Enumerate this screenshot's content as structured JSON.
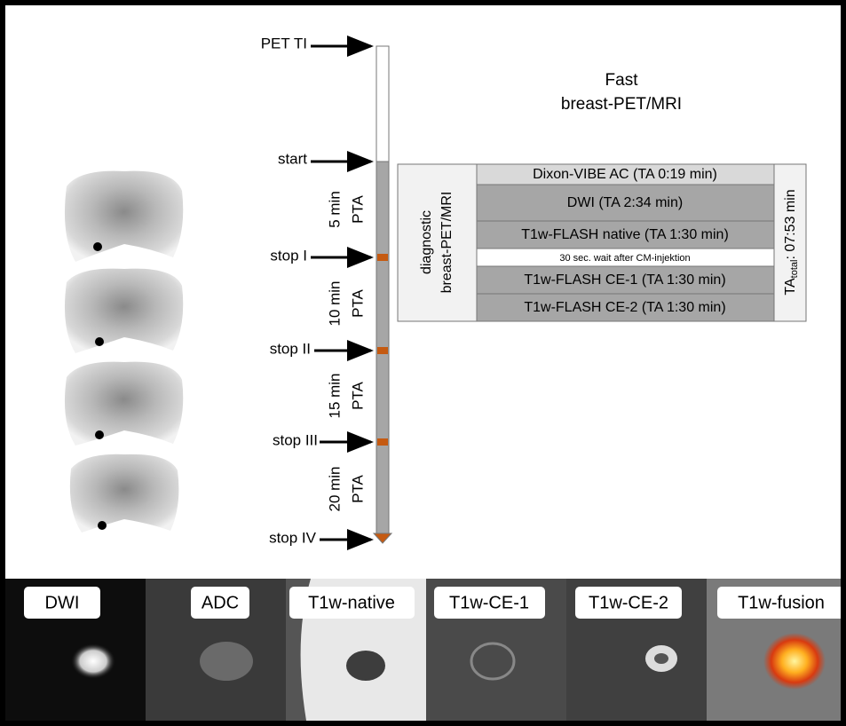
{
  "title": {
    "line1": "Fast",
    "line2": "breast-PET/MRI"
  },
  "timeline": {
    "markers": [
      "PET TI",
      "start",
      "stop I",
      "stop II",
      "stop III",
      "stop IV"
    ],
    "intervals": [
      {
        "duration": "5 min",
        "label": "PTA"
      },
      {
        "duration": "10 min",
        "label": "PTA"
      },
      {
        "duration": "15 min",
        "label": "PTA"
      },
      {
        "duration": "20 min",
        "label": "PTA"
      }
    ]
  },
  "protocol": {
    "group": {
      "line1": "diagnostic",
      "line2": "breast-PET/MRI"
    },
    "rows": [
      "Dixon-VIBE AC (TA 0:19 min)",
      "DWI (TA 2:34 min)",
      "T1w-FLASH native (TA 1:30 min)",
      "30 sec. wait after CM-injektion",
      "T1w-FLASH CE-1 (TA 1:30 min)",
      "T1w-FLASH CE-2 (TA 1:30 min)"
    ],
    "total": {
      "prefix": "TA",
      "subscript": "total",
      "suffix": ": 07:53 min"
    }
  },
  "images": [
    "DWI",
    "ADC",
    "T1w-native",
    "T1w-CE-1",
    "T1w-CE-2",
    "T1w-fusion"
  ]
}
